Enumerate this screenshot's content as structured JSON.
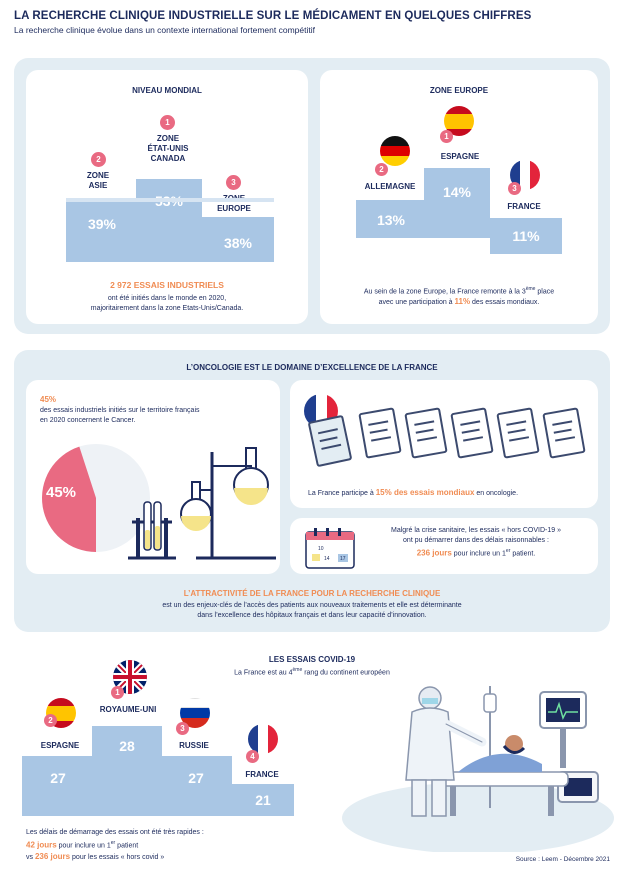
{
  "header": {
    "title": "LA RECHERCHE CLINIQUE INDUSTRIELLE SUR LE MÉDICAMENT EN QUELQUES CHIFFRES",
    "subtitle": "La recherche clinique évolue dans un contexte international fortement compétitif"
  },
  "world": {
    "title": "NIVEAU MONDIAL",
    "zones": [
      {
        "rank": "1",
        "label_lines": [
          "ZONE",
          "ÉTAT-UNIS",
          "CANADA"
        ],
        "percent": "53%"
      },
      {
        "rank": "2",
        "label_lines": [
          "ZONE",
          "ASIE"
        ],
        "percent": "39%"
      },
      {
        "rank": "3",
        "label_lines": [
          "ZONE",
          "EUROPE"
        ],
        "percent": "38%"
      }
    ],
    "highlight": "2 972 ESSAIS INDUSTRIELS",
    "caption_line1": "ont été initiés dans le monde en 2020,",
    "caption_line2": "majoritairement dans la zone Etats-Unis/Canada."
  },
  "europe": {
    "title": "ZONE EUROPE",
    "zones": [
      {
        "rank": "1",
        "label": "ESPAGNE",
        "percent": "14%"
      },
      {
        "rank": "2",
        "label": "ALLEMAGNE",
        "percent": "13%"
      },
      {
        "rank": "3",
        "label": "FRANCE",
        "percent": "11%"
      }
    ],
    "caption_line1_a": "Au sein de la zone Europe, la France remonte à la 3",
    "caption_line1_sup": "ème",
    "caption_line1_b": " place",
    "caption_line2_a": "avec une participation à ",
    "caption_line2_highlight": "11%",
    "caption_line2_b": " des essais mondiaux."
  },
  "oncology": {
    "title": "L’ONCOLOGIE EST LE DOMAINE D’EXCELLENCE DE LA FRANCE",
    "pct_label": "45%",
    "desc_line1": "des essais industriels initiés sur le territoire français",
    "desc_line2": "en 2020 concernent le Cancer.",
    "pie_label": "45%",
    "pie_value": 45,
    "participation_a": "La France participe à ",
    "participation_highlight": "15% des essais mondiaux",
    "participation_b": " en oncologie.",
    "covid_line1": "Malgré la crise sanitaire, les essais « hors COVID-19 »",
    "covid_line2": "ont pu démarrer dans des délais raisonnables :",
    "covid_highlight": "236 jours",
    "covid_line3_a": " pour inclure un 1",
    "covid_line3_sup": "er",
    "covid_line3_b": " patient.",
    "calendar_days": [
      "10",
      "14",
      "17"
    ],
    "attract_title": "L’ATTRACTIVITÉ DE LA FRANCE POUR LA RECHERCHE CLINIQUE",
    "attract_line1": "est un des enjeux-clés de l’accès des patients aux nouveaux traitements et elle est déterminante",
    "attract_line2": "dans l’excellence des hôpitaux français et dans leur capacité d’innovation."
  },
  "covid": {
    "title": "LES ESSAIS COVID-19",
    "sub_a": "La France est au 4",
    "sub_sup": "ème",
    "sub_b": " rang du continent européen",
    "countries": [
      {
        "rank": "1",
        "label": "ROYAUME-UNI",
        "value": "28"
      },
      {
        "rank": "2",
        "label": "ESPAGNE",
        "value": "27"
      },
      {
        "rank": "3",
        "label": "RUSSIE",
        "value": "27"
      },
      {
        "rank": "4",
        "label": "FRANCE",
        "value": "21"
      }
    ],
    "delay_line1": "Les délais de démarrage des essais ont été très rapides :",
    "delay_42": "42 jours",
    "delay_line2_a": " pour inclure un 1",
    "delay_line2_sup": "er",
    "delay_line2_b": " patient",
    "delay_vs": "vs ",
    "delay_236": "236 jours",
    "delay_line3": " pour les essais « hors covid »"
  },
  "source": "Source : Leem - Décembre 2021",
  "colors": {
    "navy": "#1c2a5c",
    "podium": "#a9c6e4",
    "panel": "#e3edf3",
    "pink": "#e96a82",
    "orange": "#f08c53"
  }
}
